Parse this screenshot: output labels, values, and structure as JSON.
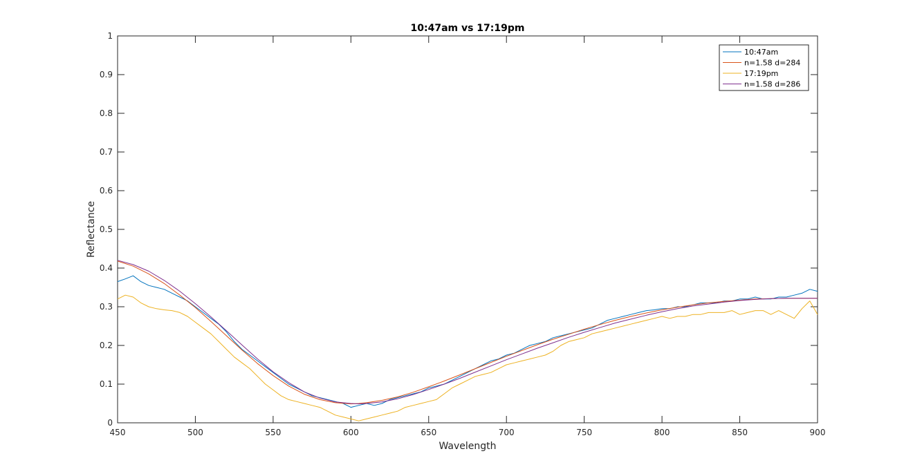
{
  "chart_data": {
    "type": "line",
    "title": "10:47am vs 17:19pm",
    "xlabel": "Wavelength",
    "ylabel": "Reflectance",
    "xlim": [
      450,
      900
    ],
    "ylim": [
      0,
      1
    ],
    "xticks": [
      "450",
      "500",
      "550",
      "600",
      "650",
      "700",
      "750",
      "800",
      "850",
      "900"
    ],
    "yticks": [
      "0",
      "0.1",
      "0.2",
      "0.3",
      "0.4",
      "0.5",
      "0.6",
      "0.7",
      "0.8",
      "0.9",
      "1"
    ],
    "grid": false,
    "legend_position": "top-right",
    "series": [
      {
        "name": "10:47am",
        "color": "#0072BD",
        "x": [
          450,
          455,
          460,
          465,
          470,
          475,
          480,
          485,
          490,
          495,
          500,
          505,
          510,
          515,
          520,
          525,
          530,
          535,
          540,
          545,
          550,
          555,
          560,
          565,
          570,
          575,
          580,
          585,
          590,
          595,
          600,
          605,
          610,
          615,
          620,
          625,
          630,
          635,
          640,
          645,
          650,
          655,
          660,
          665,
          670,
          675,
          680,
          685,
          690,
          695,
          700,
          705,
          710,
          715,
          720,
          725,
          730,
          735,
          740,
          745,
          750,
          755,
          760,
          765,
          770,
          775,
          780,
          785,
          790,
          795,
          800,
          805,
          810,
          815,
          820,
          825,
          830,
          835,
          840,
          845,
          850,
          855,
          860,
          865,
          870,
          875,
          880,
          885,
          890,
          895,
          900
        ],
        "y": [
          0.365,
          0.372,
          0.38,
          0.365,
          0.355,
          0.35,
          0.345,
          0.335,
          0.325,
          0.315,
          0.3,
          0.285,
          0.27,
          0.255,
          0.235,
          0.21,
          0.19,
          0.175,
          0.16,
          0.145,
          0.13,
          0.115,
          0.1,
          0.09,
          0.08,
          0.07,
          0.065,
          0.06,
          0.055,
          0.05,
          0.04,
          0.045,
          0.05,
          0.045,
          0.05,
          0.06,
          0.065,
          0.07,
          0.075,
          0.08,
          0.09,
          0.095,
          0.1,
          0.11,
          0.12,
          0.13,
          0.14,
          0.15,
          0.16,
          0.165,
          0.175,
          0.18,
          0.19,
          0.2,
          0.205,
          0.21,
          0.22,
          0.225,
          0.23,
          0.235,
          0.24,
          0.245,
          0.255,
          0.265,
          0.27,
          0.275,
          0.28,
          0.285,
          0.29,
          0.292,
          0.295,
          0.295,
          0.3,
          0.3,
          0.305,
          0.31,
          0.31,
          0.31,
          0.315,
          0.315,
          0.32,
          0.32,
          0.325,
          0.32,
          0.32,
          0.325,
          0.325,
          0.33,
          0.335,
          0.345,
          0.34
        ]
      },
      {
        "name": "n=1.58 d=284",
        "color": "#D95319",
        "x": [
          450,
          460,
          470,
          480,
          490,
          500,
          510,
          520,
          530,
          540,
          550,
          560,
          570,
          580,
          590,
          600,
          605,
          610,
          620,
          630,
          640,
          650,
          660,
          670,
          680,
          690,
          700,
          710,
          720,
          730,
          740,
          750,
          760,
          770,
          780,
          790,
          800,
          810,
          820,
          830,
          840,
          850,
          860,
          870,
          880,
          890,
          900
        ],
        "y": [
          0.418,
          0.405,
          0.385,
          0.36,
          0.33,
          0.298,
          0.262,
          0.225,
          0.188,
          0.153,
          0.122,
          0.095,
          0.074,
          0.06,
          0.052,
          0.049,
          0.05,
          0.052,
          0.058,
          0.067,
          0.079,
          0.093,
          0.108,
          0.124,
          0.14,
          0.156,
          0.172,
          0.187,
          0.202,
          0.216,
          0.229,
          0.242,
          0.254,
          0.265,
          0.275,
          0.284,
          0.292,
          0.299,
          0.305,
          0.31,
          0.314,
          0.317,
          0.32,
          0.321,
          0.322,
          0.322,
          0.322
        ]
      },
      {
        "name": "17:19pm",
        "color": "#EDB120",
        "x": [
          450,
          455,
          460,
          465,
          470,
          475,
          480,
          485,
          490,
          495,
          500,
          505,
          510,
          515,
          520,
          525,
          530,
          535,
          540,
          545,
          550,
          555,
          560,
          565,
          570,
          575,
          580,
          585,
          590,
          595,
          600,
          605,
          610,
          615,
          620,
          625,
          630,
          635,
          640,
          645,
          650,
          655,
          660,
          665,
          670,
          675,
          680,
          685,
          690,
          695,
          700,
          705,
          710,
          715,
          720,
          725,
          730,
          735,
          740,
          745,
          750,
          755,
          760,
          765,
          770,
          775,
          780,
          785,
          790,
          795,
          800,
          805,
          810,
          815,
          820,
          825,
          830,
          835,
          840,
          845,
          850,
          855,
          860,
          865,
          870,
          875,
          880,
          885,
          890,
          895,
          900
        ],
        "y": [
          0.32,
          0.33,
          0.325,
          0.31,
          0.3,
          0.295,
          0.292,
          0.29,
          0.285,
          0.275,
          0.26,
          0.245,
          0.23,
          0.21,
          0.19,
          0.17,
          0.155,
          0.14,
          0.12,
          0.1,
          0.085,
          0.07,
          0.06,
          0.055,
          0.05,
          0.045,
          0.04,
          0.03,
          0.02,
          0.015,
          0.01,
          0.005,
          0.01,
          0.015,
          0.02,
          0.025,
          0.03,
          0.04,
          0.045,
          0.05,
          0.055,
          0.06,
          0.075,
          0.09,
          0.1,
          0.11,
          0.12,
          0.125,
          0.13,
          0.14,
          0.15,
          0.155,
          0.16,
          0.165,
          0.17,
          0.175,
          0.185,
          0.2,
          0.21,
          0.215,
          0.22,
          0.23,
          0.235,
          0.24,
          0.245,
          0.25,
          0.255,
          0.26,
          0.265,
          0.27,
          0.275,
          0.27,
          0.275,
          0.275,
          0.28,
          0.28,
          0.285,
          0.285,
          0.285,
          0.29,
          0.28,
          0.285,
          0.29,
          0.29,
          0.28,
          0.29,
          0.28,
          0.27,
          0.295,
          0.315,
          0.28
        ]
      },
      {
        "name": "n=1.58 d=286",
        "color": "#7E2F8E",
        "x": [
          450,
          460,
          470,
          480,
          490,
          500,
          510,
          520,
          530,
          540,
          550,
          560,
          570,
          580,
          590,
          600,
          605,
          610,
          620,
          630,
          640,
          650,
          660,
          670,
          680,
          690,
          700,
          710,
          720,
          730,
          740,
          750,
          760,
          770,
          780,
          790,
          800,
          810,
          820,
          830,
          840,
          850,
          860,
          870,
          880,
          890,
          900
        ],
        "y": [
          0.42,
          0.409,
          0.392,
          0.368,
          0.34,
          0.308,
          0.274,
          0.238,
          0.201,
          0.165,
          0.132,
          0.104,
          0.08,
          0.064,
          0.054,
          0.05,
          0.049,
          0.05,
          0.054,
          0.062,
          0.073,
          0.086,
          0.1,
          0.115,
          0.131,
          0.147,
          0.163,
          0.178,
          0.193,
          0.207,
          0.221,
          0.234,
          0.246,
          0.258,
          0.268,
          0.278,
          0.287,
          0.295,
          0.302,
          0.307,
          0.312,
          0.316,
          0.319,
          0.321,
          0.322,
          0.322,
          0.322
        ]
      }
    ]
  }
}
